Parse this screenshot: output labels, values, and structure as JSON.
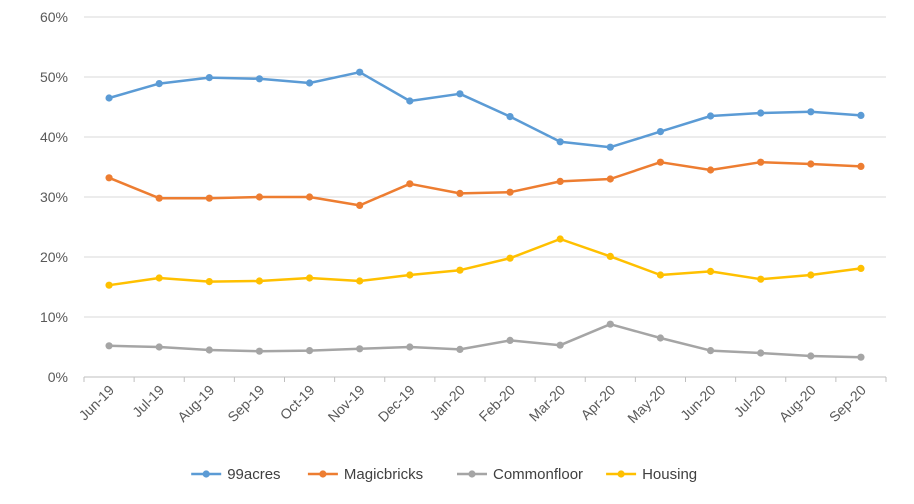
{
  "chart_data": {
    "type": "line",
    "title": "",
    "xlabel": "",
    "ylabel": "",
    "ylim": [
      0,
      60
    ],
    "yticks": [
      "0%",
      "10%",
      "20%",
      "30%",
      "40%",
      "50%",
      "60%"
    ],
    "grid": true,
    "legend_position": "bottom",
    "categories": [
      "Jun-19",
      "Jul-19",
      "Aug-19",
      "Sep-19",
      "Oct-19",
      "Nov-19",
      "Dec-19",
      "Jan-20",
      "Feb-20",
      "Mar-20",
      "Apr-20",
      "May-20",
      "Jun-20",
      "Jul-20",
      "Aug-20",
      "Sep-20"
    ],
    "series": [
      {
        "name": "99acres",
        "color": "#5B9BD5",
        "values": [
          46.5,
          48.9,
          49.9,
          49.7,
          49.0,
          50.8,
          46.0,
          47.2,
          43.4,
          39.2,
          38.3,
          40.9,
          43.5,
          44.0,
          44.2,
          43.6
        ]
      },
      {
        "name": "Magicbricks",
        "color": "#ED7D31",
        "values": [
          33.2,
          29.8,
          29.8,
          30.0,
          30.0,
          28.6,
          32.2,
          30.6,
          30.8,
          32.6,
          33.0,
          35.8,
          34.5,
          35.8,
          35.5,
          35.1
        ]
      },
      {
        "name": "Commonfloor",
        "color": "#A5A5A5",
        "values": [
          5.2,
          5.0,
          4.5,
          4.3,
          4.4,
          4.7,
          5.0,
          4.6,
          6.1,
          5.3,
          8.8,
          6.5,
          4.4,
          4.0,
          3.5,
          3.3
        ]
      },
      {
        "name": "Housing",
        "color": "#FFC000",
        "values": [
          15.3,
          16.5,
          15.9,
          16.0,
          16.5,
          16.0,
          17.0,
          17.8,
          19.8,
          23.0,
          20.1,
          17.0,
          17.6,
          16.3,
          17.0,
          18.1
        ]
      }
    ]
  }
}
